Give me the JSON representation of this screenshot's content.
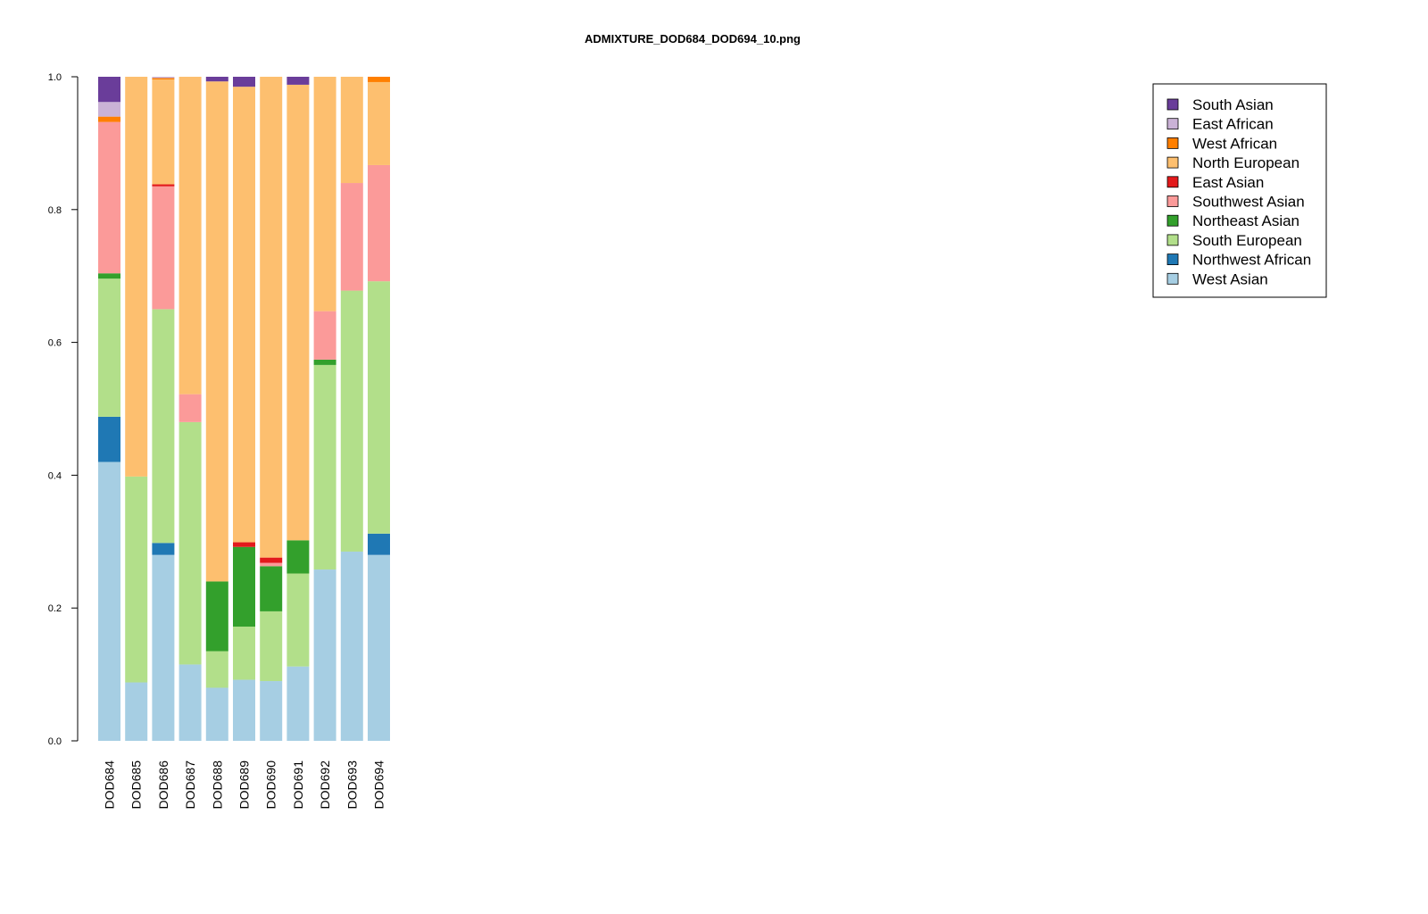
{
  "chart_data": {
    "type": "bar",
    "stacked": true,
    "title": "ADMIXTURE_DOD684_DOD694_10.png",
    "xlabel": "",
    "ylabel": "",
    "ylim": [
      0,
      1
    ],
    "yticks": [
      "0.0",
      "0.2",
      "0.4",
      "0.6",
      "0.8",
      "1.0"
    ],
    "grid": false,
    "legend_position": "top-right",
    "categories": [
      "DOD684",
      "DOD685",
      "DOD686",
      "DOD687",
      "DOD688",
      "DOD689",
      "DOD690",
      "DOD691",
      "DOD692",
      "DOD693",
      "DOD694"
    ],
    "series": [
      {
        "name": "West Asian",
        "color": "#a6cee3",
        "values": [
          0.42,
          0.088,
          0.28,
          0.115,
          0.08,
          0.092,
          0.09,
          0.112,
          0.258,
          0.285,
          0.28
        ]
      },
      {
        "name": "Northwest African",
        "color": "#1f78b4",
        "values": [
          0.068,
          0.0,
          0.018,
          0.0,
          0.0,
          0.0,
          0.0,
          0.0,
          0.0,
          0.0,
          0.032
        ]
      },
      {
        "name": "South European",
        "color": "#b2df8a",
        "values": [
          0.208,
          0.31,
          0.352,
          0.365,
          0.055,
          0.08,
          0.105,
          0.14,
          0.308,
          0.393,
          0.38
        ]
      },
      {
        "name": "Northeast Asian",
        "color": "#33a02c",
        "values": [
          0.008,
          0.0,
          0.0,
          0.0,
          0.105,
          0.12,
          0.068,
          0.05,
          0.008,
          0.0,
          0.0
        ]
      },
      {
        "name": "Southwest Asian",
        "color": "#fb9a99",
        "values": [
          0.228,
          0.0,
          0.185,
          0.042,
          0.0,
          0.0,
          0.005,
          0.0,
          0.073,
          0.162,
          0.175
        ]
      },
      {
        "name": "East Asian",
        "color": "#e31a1c",
        "values": [
          0.0,
          0.0,
          0.003,
          0.0,
          0.0,
          0.007,
          0.008,
          0.0,
          0.0,
          0.0,
          0.0
        ]
      },
      {
        "name": "North European",
        "color": "#fdbf6f",
        "values": [
          0.0,
          0.602,
          0.158,
          0.478,
          0.753,
          0.686,
          0.724,
          0.686,
          0.353,
          0.16,
          0.125
        ]
      },
      {
        "name": "West African",
        "color": "#ff7f00",
        "values": [
          0.008,
          0.0,
          0.002,
          0.0,
          0.0,
          0.0,
          0.0,
          0.0,
          0.0,
          0.0,
          0.008
        ]
      },
      {
        "name": "East African",
        "color": "#cab2d6",
        "values": [
          0.022,
          0.0,
          0.002,
          0.0,
          0.0,
          0.0,
          0.0,
          0.0,
          0.0,
          0.0,
          0.0
        ]
      },
      {
        "name": "South Asian",
        "color": "#6a3d9a",
        "values": [
          0.038,
          0.0,
          0.0,
          0.0,
          0.007,
          0.015,
          0.0,
          0.012,
          0.0,
          0.0,
          0.0
        ]
      }
    ],
    "legend": [
      "South Asian",
      "East African",
      "West African",
      "North European",
      "East Asian",
      "Southwest Asian",
      "Northeast Asian",
      "South European",
      "Northwest African",
      "West Asian"
    ]
  }
}
